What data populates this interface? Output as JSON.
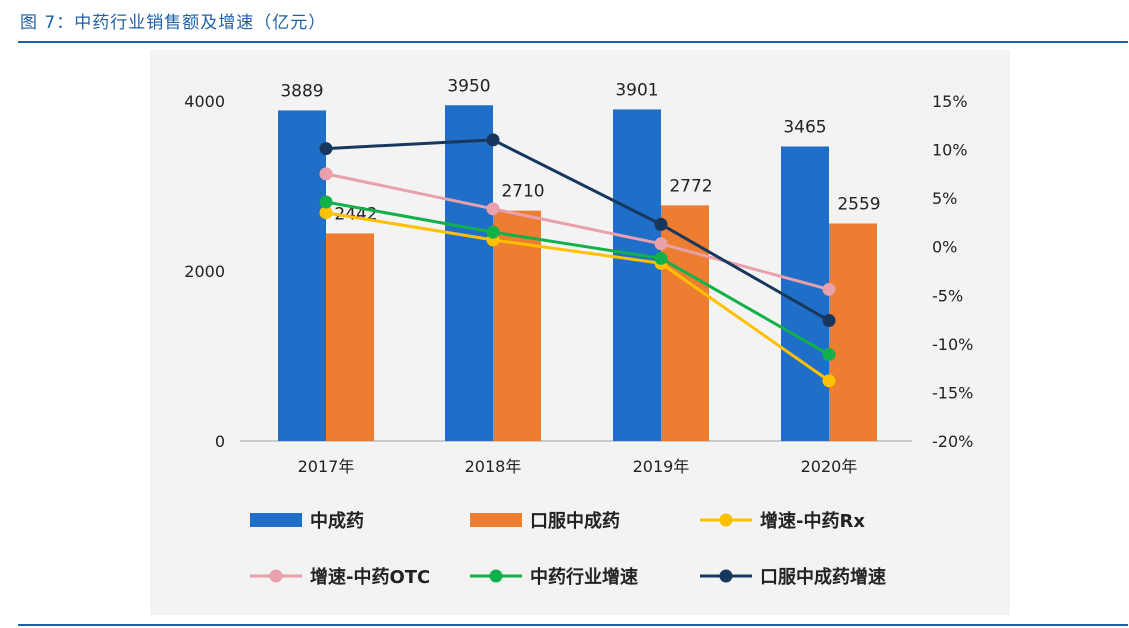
{
  "header": {
    "title": "图 7：中药行业销售额及增速（亿元）"
  },
  "chart_data": {
    "type": "bar",
    "title": "",
    "categories": [
      "2017年",
      "2018年",
      "2019年",
      "2020年"
    ],
    "left_axis": {
      "ylim": [
        0,
        4000
      ],
      "ticks": [
        "0",
        "2000",
        "4000"
      ]
    },
    "right_axis": {
      "ylim": [
        -20,
        15
      ],
      "ticks": [
        "-20%",
        "-15%",
        "-10%",
        "-5%",
        "0%",
        "5%",
        "10%",
        "15%"
      ]
    },
    "grid": false,
    "legend_placement": "bottom",
    "bar_series": [
      {
        "name": "中成药",
        "color": "#1f6fc9",
        "values": [
          3889,
          3950,
          3901,
          3465
        ],
        "labels": [
          "3889",
          "3950",
          "3901",
          "3465"
        ]
      },
      {
        "name": "口服中成药",
        "color": "#ed7d31",
        "values": [
          2442,
          2710,
          2772,
          2559
        ],
        "labels": [
          "2442",
          "2710",
          "2772",
          "2559"
        ]
      }
    ],
    "line_series": [
      {
        "name": "增速-中药Rx",
        "color": "#ffc000",
        "values": [
          3.5,
          0.7,
          -1.7,
          -13.8
        ]
      },
      {
        "name": "增速-中药OTC",
        "color": "#e8a0ac",
        "values": [
          7.5,
          3.9,
          0.3,
          -4.4
        ]
      },
      {
        "name": "中药行业增速",
        "color": "#12b04a",
        "values": [
          4.6,
          1.5,
          -1.2,
          -11.1
        ]
      },
      {
        "name": "口服中成药增速",
        "color": "#17375e",
        "values": [
          10.1,
          11.0,
          2.3,
          -7.6
        ]
      }
    ]
  }
}
